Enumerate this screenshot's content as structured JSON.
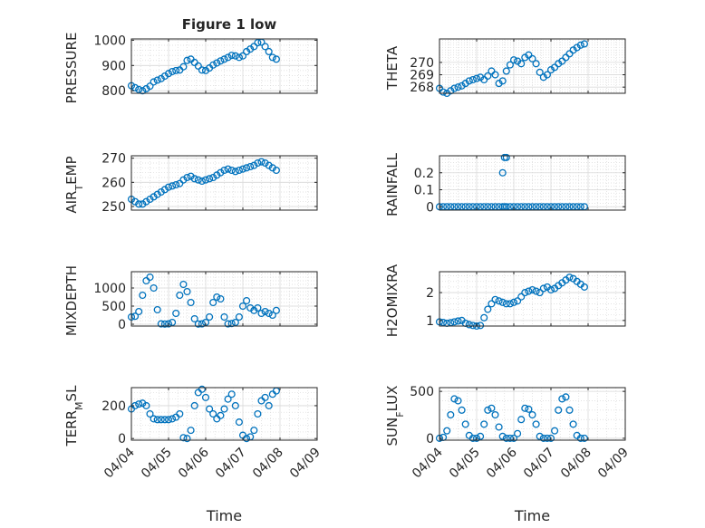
{
  "figure_title": "Figure 1 low",
  "marker_color": "#0072BD",
  "axis_color": "#262626",
  "grid_color": "#d9d9d9",
  "x_tick_labels": [
    "04/04",
    "04/05",
    "04/06",
    "04/07",
    "04/08",
    "04/09"
  ],
  "x_label": "Time",
  "chart_data": [
    {
      "type": "scatter",
      "title": "Figure 1 low",
      "ylabel": "PRESSURE",
      "xlim": [
        0,
        5
      ],
      "ylim": [
        790,
        1005
      ],
      "yticks": [
        800,
        900,
        1000
      ],
      "grid": true,
      "x": [
        0,
        0.1,
        0.2,
        0.3,
        0.4,
        0.5,
        0.6,
        0.7,
        0.8,
        0.9,
        1.0,
        1.1,
        1.2,
        1.3,
        1.4,
        1.5,
        1.6,
        1.7,
        1.8,
        1.9,
        2.0,
        2.1,
        2.2,
        2.3,
        2.4,
        2.5,
        2.6,
        2.7,
        2.8,
        2.9,
        3.0,
        3.1,
        3.2,
        3.3,
        3.4,
        3.5,
        3.6,
        3.7,
        3.8,
        3.9
      ],
      "y": [
        820,
        812,
        805,
        800,
        808,
        818,
        835,
        842,
        848,
        858,
        868,
        876,
        880,
        882,
        895,
        920,
        925,
        912,
        898,
        882,
        880,
        890,
        902,
        910,
        918,
        925,
        932,
        940,
        938,
        932,
        938,
        955,
        965,
        975,
        990,
        992,
        975,
        955,
        932,
        925
      ]
    },
    {
      "type": "scatter",
      "ylabel": "THETA",
      "xlim": [
        0,
        5
      ],
      "ylim": [
        267.5,
        271.9
      ],
      "yticks": [
        268,
        269,
        270
      ],
      "grid": true,
      "x": [
        0,
        0.1,
        0.2,
        0.3,
        0.4,
        0.5,
        0.6,
        0.7,
        0.8,
        0.9,
        1.0,
        1.1,
        1.2,
        1.3,
        1.4,
        1.5,
        1.6,
        1.7,
        1.8,
        1.9,
        2.0,
        2.1,
        2.2,
        2.3,
        2.4,
        2.5,
        2.6,
        2.7,
        2.8,
        2.9,
        3.0,
        3.1,
        3.2,
        3.3,
        3.4,
        3.5,
        3.6,
        3.7,
        3.8,
        3.9
      ],
      "y": [
        267.9,
        267.6,
        267.5,
        267.7,
        267.9,
        268.0,
        268.1,
        268.3,
        268.5,
        268.6,
        268.7,
        268.8,
        268.6,
        268.9,
        269.3,
        269.0,
        268.3,
        268.5,
        269.3,
        269.8,
        270.2,
        270.1,
        269.9,
        270.4,
        270.6,
        270.3,
        269.9,
        269.2,
        268.8,
        269.0,
        269.4,
        269.6,
        269.9,
        270.1,
        270.4,
        270.7,
        271.0,
        271.2,
        271.4,
        271.5
      ]
    },
    {
      "type": "scatter",
      "ylabel": "AIR_TEMP",
      "xlim": [
        0,
        5
      ],
      "ylim": [
        248.5,
        271
      ],
      "yticks": [
        250,
        260,
        270
      ],
      "grid": true,
      "x": [
        0,
        0.1,
        0.2,
        0.3,
        0.4,
        0.5,
        0.6,
        0.7,
        0.8,
        0.9,
        1.0,
        1.1,
        1.2,
        1.3,
        1.4,
        1.5,
        1.6,
        1.7,
        1.8,
        1.9,
        2.0,
        2.1,
        2.2,
        2.3,
        2.4,
        2.5,
        2.6,
        2.7,
        2.8,
        2.9,
        3.0,
        3.1,
        3.2,
        3.3,
        3.4,
        3.5,
        3.6,
        3.7,
        3.8,
        3.9
      ],
      "y": [
        253,
        252,
        251,
        251,
        252,
        253,
        254,
        255,
        256,
        257,
        258,
        258.5,
        259,
        259.5,
        261,
        262,
        262.5,
        261.5,
        261,
        260.5,
        261,
        261.5,
        262,
        263,
        264,
        265,
        265.5,
        265,
        264.5,
        265,
        265.5,
        266,
        266.5,
        267,
        268,
        268.5,
        268,
        267,
        266,
        265
      ]
    },
    {
      "type": "scatter",
      "ylabel": "RAINFALL",
      "xlim": [
        0,
        5
      ],
      "ylim": [
        -0.02,
        0.3
      ],
      "yticks": [
        0,
        0.1,
        0.2
      ],
      "grid": true,
      "x": [
        0,
        0.1,
        0.2,
        0.3,
        0.4,
        0.5,
        0.6,
        0.7,
        0.8,
        0.9,
        1.0,
        1.1,
        1.2,
        1.3,
        1.4,
        1.5,
        1.6,
        1.7,
        1.75,
        1.8,
        1.9,
        2.0,
        2.1,
        2.2,
        2.3,
        2.4,
        2.5,
        2.6,
        2.7,
        2.8,
        2.9,
        3.0,
        3.1,
        3.2,
        3.3,
        3.4,
        3.5,
        3.6,
        3.7,
        3.8,
        3.9,
        1.7,
        1.75,
        1.8
      ],
      "y": [
        0,
        0,
        0,
        0,
        0,
        0,
        0,
        0,
        0,
        0,
        0,
        0,
        0,
        0,
        0,
        0,
        0,
        0,
        0,
        0,
        0,
        0,
        0,
        0,
        0,
        0,
        0,
        0,
        0,
        0,
        0,
        0,
        0,
        0,
        0,
        0,
        0,
        0,
        0,
        0,
        0,
        0.2,
        0.29,
        0.29
      ]
    },
    {
      "type": "scatter",
      "ylabel": "MIXDEPTH",
      "xlim": [
        0,
        5
      ],
      "ylim": [
        -50,
        1450
      ],
      "yticks": [
        0,
        500,
        1000
      ],
      "grid": true,
      "x": [
        0,
        0.1,
        0.2,
        0.3,
        0.4,
        0.5,
        0.6,
        0.7,
        0.8,
        0.9,
        1.0,
        1.1,
        1.2,
        1.3,
        1.4,
        1.5,
        1.6,
        1.7,
        1.8,
        1.9,
        2.0,
        2.1,
        2.2,
        2.3,
        2.4,
        2.5,
        2.6,
        2.7,
        2.8,
        2.9,
        3.0,
        3.1,
        3.2,
        3.3,
        3.4,
        3.5,
        3.6,
        3.7,
        3.8,
        3.9
      ],
      "y": [
        200,
        220,
        350,
        800,
        1200,
        1300,
        1000,
        400,
        10,
        5,
        10,
        50,
        300,
        800,
        1100,
        900,
        600,
        150,
        5,
        10,
        50,
        200,
        600,
        750,
        700,
        200,
        10,
        20,
        50,
        200,
        500,
        650,
        450,
        380,
        450,
        300,
        350,
        300,
        250,
        380
      ]
    },
    {
      "type": "scatter",
      "ylabel": "H2OMIXRA",
      "xlim": [
        0,
        5
      ],
      "ylim": [
        0.8,
        2.75
      ],
      "yticks": [
        1,
        2
      ],
      "grid": true,
      "x": [
        0,
        0.1,
        0.2,
        0.3,
        0.4,
        0.5,
        0.6,
        0.7,
        0.8,
        0.9,
        1.0,
        1.1,
        1.2,
        1.3,
        1.4,
        1.5,
        1.6,
        1.7,
        1.8,
        1.9,
        2.0,
        2.1,
        2.2,
        2.3,
        2.4,
        2.5,
        2.6,
        2.7,
        2.8,
        2.9,
        3.0,
        3.1,
        3.2,
        3.3,
        3.4,
        3.5,
        3.6,
        3.7,
        3.8,
        3.9
      ],
      "y": [
        0.95,
        0.93,
        0.9,
        0.92,
        0.95,
        0.98,
        1.0,
        0.9,
        0.85,
        0.82,
        0.8,
        0.82,
        1.1,
        1.4,
        1.6,
        1.75,
        1.7,
        1.65,
        1.6,
        1.6,
        1.65,
        1.7,
        1.85,
        2.0,
        2.05,
        2.1,
        2.05,
        2.0,
        2.15,
        2.2,
        2.1,
        2.15,
        2.25,
        2.35,
        2.45,
        2.55,
        2.5,
        2.4,
        2.3,
        2.2
      ]
    },
    {
      "type": "scatter",
      "ylabel": "TERR_MSL",
      "xlim": [
        0,
        5
      ],
      "ylim": [
        -10,
        310
      ],
      "yticks": [
        0,
        200
      ],
      "grid": true,
      "x": [
        0,
        0.1,
        0.2,
        0.3,
        0.4,
        0.5,
        0.6,
        0.7,
        0.8,
        0.9,
        1.0,
        1.1,
        1.2,
        1.3,
        1.4,
        1.5,
        1.6,
        1.7,
        1.8,
        1.9,
        2.0,
        2.1,
        2.2,
        2.3,
        2.4,
        2.5,
        2.6,
        2.7,
        2.8,
        2.9,
        3.0,
        3.1,
        3.2,
        3.3,
        3.4,
        3.5,
        3.6,
        3.7,
        3.8,
        3.9
      ],
      "y": [
        180,
        200,
        210,
        215,
        200,
        150,
        120,
        115,
        115,
        115,
        115,
        120,
        130,
        150,
        5,
        0,
        50,
        200,
        280,
        300,
        250,
        180,
        150,
        120,
        140,
        180,
        240,
        270,
        200,
        100,
        20,
        0,
        10,
        50,
        150,
        230,
        250,
        200,
        270,
        290
      ]
    },
    {
      "type": "scatter",
      "ylabel": "SUN_FLUX",
      "xlim": [
        0,
        5
      ],
      "ylim": [
        -20,
        540
      ],
      "yticks": [
        0,
        500
      ],
      "grid": true,
      "x": [
        0,
        0.1,
        0.2,
        0.3,
        0.4,
        0.5,
        0.6,
        0.7,
        0.8,
        0.9,
        1.0,
        1.1,
        1.2,
        1.3,
        1.4,
        1.5,
        1.6,
        1.7,
        1.8,
        1.9,
        2.0,
        2.1,
        2.2,
        2.3,
        2.4,
        2.5,
        2.6,
        2.7,
        2.8,
        2.9,
        3.0,
        3.1,
        3.2,
        3.3,
        3.4,
        3.5,
        3.6,
        3.7,
        3.8,
        3.9
      ],
      "y": [
        0,
        10,
        80,
        250,
        420,
        400,
        300,
        150,
        30,
        0,
        0,
        20,
        150,
        300,
        320,
        250,
        120,
        20,
        0,
        0,
        0,
        50,
        200,
        320,
        310,
        250,
        150,
        20,
        0,
        0,
        0,
        80,
        300,
        420,
        440,
        300,
        150,
        30,
        0,
        0
      ]
    }
  ]
}
